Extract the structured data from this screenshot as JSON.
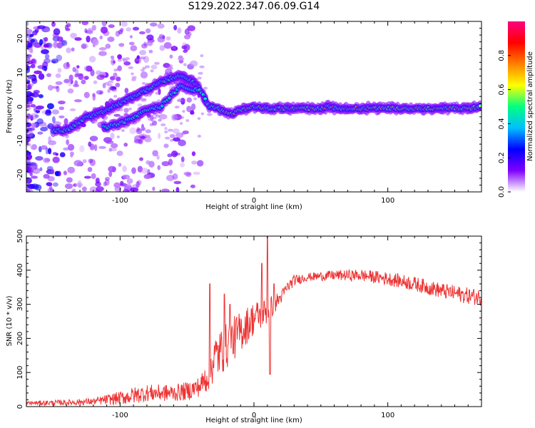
{
  "title": "S129.2022.347.06.09.G14",
  "colors": {
    "snr_line": "#ee3333",
    "colormap": [
      "#ffffff",
      "#8000ff",
      "#0000ff",
      "#00c0ff",
      "#00ff80",
      "#ffff00",
      "#ff8000",
      "#ff0000",
      "#ff0080"
    ]
  },
  "chart_data": [
    {
      "type": "heatmap",
      "xlabel": "Height of straight line (km)",
      "ylabel": "Frequency (Hz)",
      "xlim": [
        -170,
        170
      ],
      "ylim": [
        -25,
        25
      ],
      "x_ticks": [
        -100,
        0,
        100
      ],
      "y_ticks": [
        -20,
        -10,
        0,
        10,
        20
      ],
      "colorbar": {
        "label": "Normalized spectral amplitude",
        "range": [
          0.0,
          1.0
        ],
        "ticks": [
          "0.0",
          "0.2",
          "0.4",
          "0.6",
          "0.8"
        ]
      },
      "ridge": {
        "x": [
          -140,
          -125,
          -115,
          -105,
          -95,
          -85,
          -75,
          -65,
          -55,
          -48,
          -42,
          -38,
          -34,
          -30,
          -25,
          -20,
          -15,
          -10,
          -5,
          0,
          10,
          20,
          30,
          40,
          50,
          55,
          60,
          70,
          80,
          90,
          100,
          110,
          120,
          130,
          140,
          150,
          160,
          170
        ],
        "y": [
          -7,
          -3,
          -2,
          0,
          2,
          4,
          6,
          8,
          9,
          8,
          6,
          3,
          0,
          0,
          -1,
          -2,
          -2,
          -1,
          -0.5,
          0,
          -0.5,
          -0.5,
          -0.5,
          -0.5,
          -0.5,
          0,
          -0.5,
          -0.5,
          -0.5,
          -0.5,
          -0.5,
          -0.5,
          -0.5,
          -0.5,
          -0.5,
          -0.5,
          -0.5,
          0
        ]
      },
      "ridge2": {
        "x": [
          -110,
          -100,
          -90,
          -80,
          -70,
          -60,
          -55,
          -50,
          -45,
          -40,
          -36
        ],
        "y": [
          -6,
          -5,
          -3,
          -1,
          0,
          4,
          6,
          5,
          5,
          5,
          2
        ]
      }
    },
    {
      "type": "line",
      "xlabel": "Height of straight line (km)",
      "ylabel": "SNR (10 * v/v)",
      "xlim": [
        -170,
        170
      ],
      "ylim": [
        0,
        500
      ],
      "x_ticks": [
        -100,
        0,
        100
      ],
      "y_ticks": [
        0,
        100,
        200,
        300,
        400,
        500
      ],
      "trend": {
        "x": [
          -170,
          -140,
          -120,
          -100,
          -80,
          -60,
          -50,
          -40,
          -35,
          -30,
          -25,
          -20,
          -15,
          -10,
          -5,
          0,
          5,
          10,
          15,
          20,
          25,
          30,
          40,
          60,
          80,
          100,
          120,
          140,
          160,
          170
        ],
        "y": [
          10,
          12,
          15,
          25,
          40,
          40,
          45,
          60,
          90,
          140,
          160,
          180,
          200,
          220,
          240,
          260,
          270,
          280,
          300,
          320,
          350,
          370,
          380,
          385,
          385,
          375,
          360,
          340,
          325,
          320
        ]
      },
      "noise": {
        "x": [
          -170,
          -120,
          -90,
          -60,
          -40,
          -30,
          -20,
          -10,
          0,
          10,
          20,
          40,
          100,
          170
        ],
        "amp": [
          6,
          10,
          25,
          25,
          30,
          70,
          70,
          60,
          50,
          40,
          20,
          12,
          20,
          25
        ]
      },
      "spikes": [
        {
          "x": -33,
          "y": 360
        },
        {
          "x": -22,
          "y": 330
        },
        {
          "x": -18,
          "y": 300
        },
        {
          "x": 10,
          "y": 500
        },
        {
          "x": 12,
          "y": 95
        },
        {
          "x": 6,
          "y": 420
        },
        {
          "x": 15,
          "y": 360
        }
      ]
    }
  ]
}
